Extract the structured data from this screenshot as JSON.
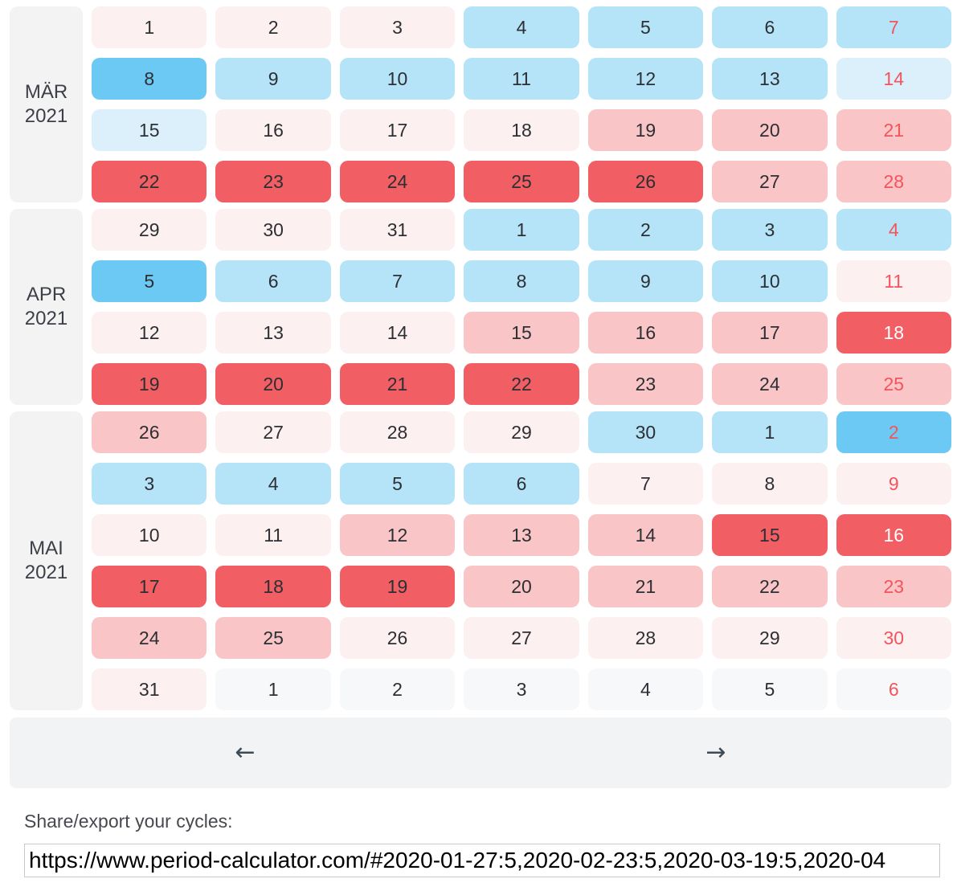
{
  "calendar": {
    "colors": {
      "period_faint": "#fdf0f0",
      "period_light": "#f9c5c7",
      "period_strong": "#f15e63",
      "fertile_faint": "#dcf0fb",
      "fertile": "#b5e3f8",
      "ovulation": "#6bc9f4",
      "neutral": "#f7f8f9",
      "label_bg": "#f3f3f4",
      "day_text": "#2c2f33",
      "sunday_text": "#f4545c",
      "white_text": "#ffffff"
    },
    "months": [
      {
        "label_line1": "MÄR",
        "label_line2": "2021",
        "rows": [
          [
            {
              "day": "1",
              "tone": "p0",
              "text": "dark"
            },
            {
              "day": "2",
              "tone": "p0",
              "text": "dark"
            },
            {
              "day": "3",
              "tone": "p0",
              "text": "dark"
            },
            {
              "day": "4",
              "tone": "b1",
              "text": "dark"
            },
            {
              "day": "5",
              "tone": "b1",
              "text": "dark"
            },
            {
              "day": "6",
              "tone": "b1",
              "text": "dark"
            },
            {
              "day": "7",
              "tone": "b1",
              "text": "red"
            }
          ],
          [
            {
              "day": "8",
              "tone": "b2",
              "text": "dark"
            },
            {
              "day": "9",
              "tone": "b1",
              "text": "dark"
            },
            {
              "day": "10",
              "tone": "b1",
              "text": "dark"
            },
            {
              "day": "11",
              "tone": "b1",
              "text": "dark"
            },
            {
              "day": "12",
              "tone": "b1",
              "text": "dark"
            },
            {
              "day": "13",
              "tone": "b1",
              "text": "dark"
            },
            {
              "day": "14",
              "tone": "b0",
              "text": "red"
            }
          ],
          [
            {
              "day": "15",
              "tone": "b0",
              "text": "dark"
            },
            {
              "day": "16",
              "tone": "p0",
              "text": "dark"
            },
            {
              "day": "17",
              "tone": "p0",
              "text": "dark"
            },
            {
              "day": "18",
              "tone": "p0",
              "text": "dark"
            },
            {
              "day": "19",
              "tone": "p1",
              "text": "dark"
            },
            {
              "day": "20",
              "tone": "p1",
              "text": "dark"
            },
            {
              "day": "21",
              "tone": "p1",
              "text": "red"
            }
          ],
          [
            {
              "day": "22",
              "tone": "p2",
              "text": "dark"
            },
            {
              "day": "23",
              "tone": "p2",
              "text": "dark"
            },
            {
              "day": "24",
              "tone": "p2",
              "text": "dark"
            },
            {
              "day": "25",
              "tone": "p2",
              "text": "dark"
            },
            {
              "day": "26",
              "tone": "p2",
              "text": "dark"
            },
            {
              "day": "27",
              "tone": "p1",
              "text": "dark"
            },
            {
              "day": "28",
              "tone": "p1",
              "text": "red"
            }
          ]
        ]
      },
      {
        "label_line1": "APR",
        "label_line2": "2021",
        "rows": [
          [
            {
              "day": "29",
              "tone": "p0",
              "text": "dark"
            },
            {
              "day": "30",
              "tone": "p0",
              "text": "dark"
            },
            {
              "day": "31",
              "tone": "p0",
              "text": "dark"
            },
            {
              "day": "1",
              "tone": "b1",
              "text": "dark"
            },
            {
              "day": "2",
              "tone": "b1",
              "text": "dark"
            },
            {
              "day": "3",
              "tone": "b1",
              "text": "dark"
            },
            {
              "day": "4",
              "tone": "b1",
              "text": "red"
            }
          ],
          [
            {
              "day": "5",
              "tone": "b2",
              "text": "dark"
            },
            {
              "day": "6",
              "tone": "b1",
              "text": "dark"
            },
            {
              "day": "7",
              "tone": "b1",
              "text": "dark"
            },
            {
              "day": "8",
              "tone": "b1",
              "text": "dark"
            },
            {
              "day": "9",
              "tone": "b1",
              "text": "dark"
            },
            {
              "day": "10",
              "tone": "b1",
              "text": "dark"
            },
            {
              "day": "11",
              "tone": "p0",
              "text": "red"
            }
          ],
          [
            {
              "day": "12",
              "tone": "p0",
              "text": "dark"
            },
            {
              "day": "13",
              "tone": "p0",
              "text": "dark"
            },
            {
              "day": "14",
              "tone": "p0",
              "text": "dark"
            },
            {
              "day": "15",
              "tone": "p1",
              "text": "dark"
            },
            {
              "day": "16",
              "tone": "p1",
              "text": "dark"
            },
            {
              "day": "17",
              "tone": "p1",
              "text": "dark"
            },
            {
              "day": "18",
              "tone": "p2",
              "text": "white"
            }
          ],
          [
            {
              "day": "19",
              "tone": "p2",
              "text": "dark"
            },
            {
              "day": "20",
              "tone": "p2",
              "text": "dark"
            },
            {
              "day": "21",
              "tone": "p2",
              "text": "dark"
            },
            {
              "day": "22",
              "tone": "p2",
              "text": "dark"
            },
            {
              "day": "23",
              "tone": "p1",
              "text": "dark"
            },
            {
              "day": "24",
              "tone": "p1",
              "text": "dark"
            },
            {
              "day": "25",
              "tone": "p1",
              "text": "red"
            }
          ]
        ]
      },
      {
        "label_line1": "MAI",
        "label_line2": "2021",
        "rows": [
          [
            {
              "day": "26",
              "tone": "p1",
              "text": "dark"
            },
            {
              "day": "27",
              "tone": "p0",
              "text": "dark"
            },
            {
              "day": "28",
              "tone": "p0",
              "text": "dark"
            },
            {
              "day": "29",
              "tone": "p0",
              "text": "dark"
            },
            {
              "day": "30",
              "tone": "b1",
              "text": "dark"
            },
            {
              "day": "1",
              "tone": "b1",
              "text": "dark"
            },
            {
              "day": "2",
              "tone": "b2",
              "text": "red"
            }
          ],
          [
            {
              "day": "3",
              "tone": "b1",
              "text": "dark"
            },
            {
              "day": "4",
              "tone": "b1",
              "text": "dark"
            },
            {
              "day": "5",
              "tone": "b1",
              "text": "dark"
            },
            {
              "day": "6",
              "tone": "b1",
              "text": "dark"
            },
            {
              "day": "7",
              "tone": "p0",
              "text": "dark"
            },
            {
              "day": "8",
              "tone": "p0",
              "text": "dark"
            },
            {
              "day": "9",
              "tone": "p0",
              "text": "red"
            }
          ],
          [
            {
              "day": "10",
              "tone": "p0",
              "text": "dark"
            },
            {
              "day": "11",
              "tone": "p0",
              "text": "dark"
            },
            {
              "day": "12",
              "tone": "p1",
              "text": "dark"
            },
            {
              "day": "13",
              "tone": "p1",
              "text": "dark"
            },
            {
              "day": "14",
              "tone": "p1",
              "text": "dark"
            },
            {
              "day": "15",
              "tone": "p2",
              "text": "dark"
            },
            {
              "day": "16",
              "tone": "p2",
              "text": "white"
            }
          ],
          [
            {
              "day": "17",
              "tone": "p2",
              "text": "dark"
            },
            {
              "day": "18",
              "tone": "p2",
              "text": "dark"
            },
            {
              "day": "19",
              "tone": "p2",
              "text": "dark"
            },
            {
              "day": "20",
              "tone": "p1",
              "text": "dark"
            },
            {
              "day": "21",
              "tone": "p1",
              "text": "dark"
            },
            {
              "day": "22",
              "tone": "p1",
              "text": "dark"
            },
            {
              "day": "23",
              "tone": "p1",
              "text": "red"
            }
          ],
          [
            {
              "day": "24",
              "tone": "p1",
              "text": "dark"
            },
            {
              "day": "25",
              "tone": "p1",
              "text": "dark"
            },
            {
              "day": "26",
              "tone": "p0",
              "text": "dark"
            },
            {
              "day": "27",
              "tone": "p0",
              "text": "dark"
            },
            {
              "day": "28",
              "tone": "p0",
              "text": "dark"
            },
            {
              "day": "29",
              "tone": "p0",
              "text": "dark"
            },
            {
              "day": "30",
              "tone": "p0",
              "text": "red"
            }
          ],
          [
            {
              "day": "31",
              "tone": "p0",
              "text": "dark"
            },
            {
              "day": "1",
              "tone": "g",
              "text": "dark"
            },
            {
              "day": "2",
              "tone": "g",
              "text": "dark"
            },
            {
              "day": "3",
              "tone": "g",
              "text": "dark"
            },
            {
              "day": "4",
              "tone": "g",
              "text": "dark"
            },
            {
              "day": "5",
              "tone": "g",
              "text": "dark"
            },
            {
              "day": "6",
              "tone": "g",
              "text": "red"
            }
          ]
        ]
      }
    ]
  },
  "nav": {
    "prev_label": "←",
    "next_label": "→",
    "bg": "#f1f3f4",
    "arrow_color": "#3e4a55"
  },
  "share": {
    "label": "Share/export your cycles:",
    "url_value": "https://www.period-calculator.com/#2020-01-27:5,2020-02-23:5,2020-03-19:5,2020-04"
  }
}
